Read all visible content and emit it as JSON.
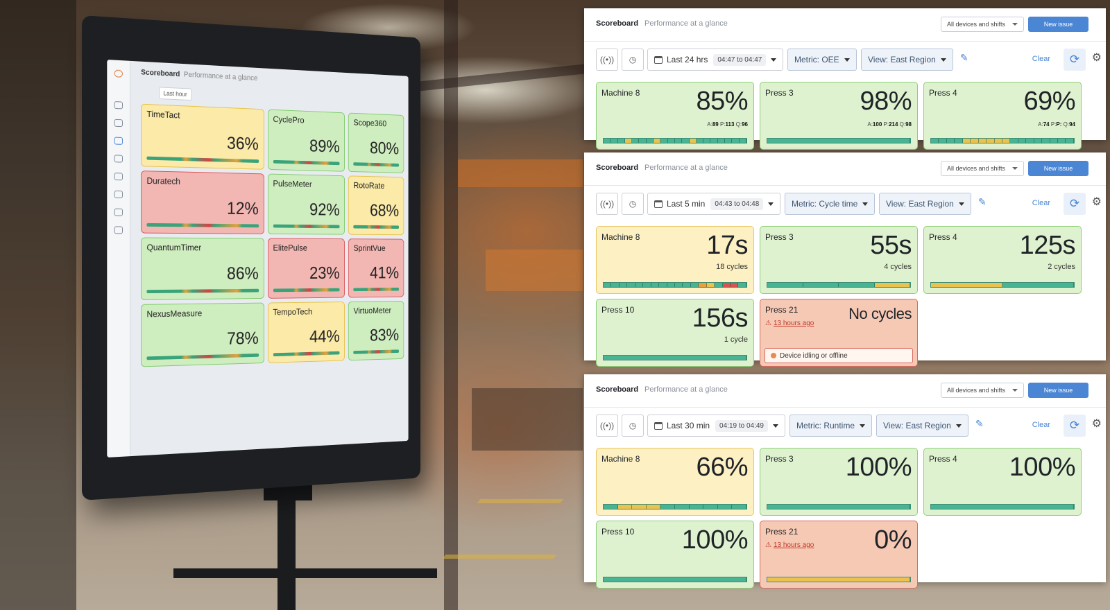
{
  "photo": {
    "monitor_title": "Scoreboard",
    "monitor_subtitle": "Performance at a glance",
    "monitor_tab": "Last hour",
    "monitor_tiles": [
      {
        "name": "TimeTact",
        "value": "36%",
        "status": "yellow"
      },
      {
        "name": "CyclePro",
        "value": "89%",
        "status": "green"
      },
      {
        "name": "Scope360",
        "value": "80%",
        "status": "green"
      },
      {
        "name": "Duratech",
        "value": "12%",
        "status": "red"
      },
      {
        "name": "PulseMeter",
        "value": "92%",
        "status": "green"
      },
      {
        "name": "RotoRate",
        "value": "68%",
        "status": "yellow"
      },
      {
        "name": "QuantumTimer",
        "value": "86%",
        "status": "green"
      },
      {
        "name": "ElitePulse",
        "value": "23%",
        "status": "red"
      },
      {
        "name": "SprintVue",
        "value": "41%",
        "status": "red"
      },
      {
        "name": "NexusMeasure",
        "value": "78%",
        "status": "green"
      },
      {
        "name": "TempoTech",
        "value": "44%",
        "status": "yellow"
      },
      {
        "name": "VirtuoMeter",
        "value": "83%",
        "status": "green"
      }
    ]
  },
  "colors": {
    "green_tile": "#dff2cf",
    "yellow_tile": "#fdf0c2",
    "red_tile": "#f6c9b4",
    "bar_green": "#4ab393",
    "bar_yellow": "#e9c24f",
    "bar_orange": "#e8a03c",
    "bar_red": "#d9534f",
    "accent": "#4a86d4"
  },
  "panels": [
    {
      "title": "Scoreboard",
      "subtitle": "Performance at a glance",
      "scope": "All devices and shifts",
      "new_issue": "New issue",
      "time": "Last 24 hrs",
      "range": "04:47 to 04:47",
      "metric": "Metric: OEE",
      "view": "View: East Region",
      "clear": "Clear",
      "tiles": [
        {
          "name": "Machine 8",
          "value": "85%",
          "status": "g",
          "a": "89",
          "p": "113",
          "q": "96",
          "bar": [
            "g",
            "g",
            "g",
            "y",
            "g",
            "g",
            "g",
            "y",
            "g",
            "g",
            "g",
            "g",
            "y",
            "g",
            "g",
            "g",
            "g",
            "g",
            "g",
            "g"
          ]
        },
        {
          "name": "Press 3",
          "value": "98%",
          "status": "g",
          "a": "100",
          "p": "214",
          "q": "98",
          "bar": [
            "g"
          ]
        },
        {
          "name": "Press 4",
          "value": "69%",
          "status": "g",
          "a": "74",
          "p": "P:",
          "q": "94",
          "bar": [
            "g",
            "g",
            "g",
            "g",
            "y",
            "y",
            "y",
            "y",
            "y",
            "y",
            "g",
            "g",
            "g",
            "g",
            "g",
            "g",
            "g",
            "g"
          ]
        }
      ]
    },
    {
      "title": "Scoreboard",
      "subtitle": "Performance at a glance",
      "scope": "All devices and shifts",
      "new_issue": "New issue",
      "time": "Last 5 min",
      "range": "04:43 to 04:48",
      "metric": "Metric: Cycle time",
      "view": "View: East Region",
      "clear": "Clear",
      "tiles": [
        {
          "name": "Machine 8",
          "value": "17s",
          "status": "y",
          "cycles": "18 cycles",
          "bar": [
            "g",
            "g",
            "g",
            "g",
            "g",
            "g",
            "g",
            "g",
            "g",
            "g",
            "g",
            "g",
            "o",
            "y",
            "g",
            "r",
            "r",
            "g"
          ]
        },
        {
          "name": "Press 3",
          "value": "55s",
          "status": "g",
          "cycles": "4 cycles",
          "bar": [
            "g",
            "g",
            "g",
            "y"
          ]
        },
        {
          "name": "Press 4",
          "value": "125s",
          "status": "g",
          "cycles": "2 cycles",
          "bar": [
            "y",
            "g"
          ]
        },
        {
          "name": "Press 10",
          "value": "156s",
          "status": "g",
          "cycles": "1 cycle",
          "bar": [
            "g"
          ]
        },
        {
          "name": "Press 21",
          "value": "No cycles",
          "status": "r",
          "ago": "13 hours ago",
          "note": "Device idling or offline"
        }
      ]
    },
    {
      "title": "Scoreboard",
      "subtitle": "Performance at a glance",
      "scope": "All devices and shifts",
      "new_issue": "New issue",
      "time": "Last 30 min",
      "range": "04:19 to 04:49",
      "metric": "Metric: Runtime",
      "view": "View: East Region",
      "clear": "Clear",
      "tiles": [
        {
          "name": "Machine 8",
          "value": "66%",
          "status": "y",
          "bar": [
            "g",
            "y",
            "y",
            "y",
            "g",
            "g",
            "g",
            "g",
            "g",
            "g"
          ]
        },
        {
          "name": "Press 3",
          "value": "100%",
          "status": "g",
          "bar": [
            "g"
          ]
        },
        {
          "name": "Press 4",
          "value": "100%",
          "status": "g",
          "bar": [
            "g"
          ]
        },
        {
          "name": "Press 10",
          "value": "100%",
          "status": "g",
          "bar": [
            "g"
          ]
        },
        {
          "name": "Press 21",
          "value": "0%",
          "status": "r",
          "ago": "13 hours ago",
          "bar": [
            "y"
          ]
        }
      ]
    }
  ]
}
